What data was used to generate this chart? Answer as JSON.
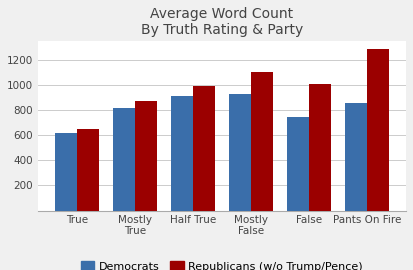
{
  "title": "Average Word Count\nBy Truth Rating & Party",
  "categories": [
    "True",
    "Mostly\nTrue",
    "Half True",
    "Mostly\nFalse",
    "False",
    "Pants On Fire"
  ],
  "democrats": [
    615,
    820,
    910,
    925,
    745,
    860
  ],
  "republicans": [
    650,
    875,
    990,
    1100,
    1010,
    1290
  ],
  "dem_color": "#3a6eaa",
  "rep_color": "#9b0000",
  "ylim": [
    0,
    1350
  ],
  "yticks": [
    200,
    400,
    600,
    800,
    1000,
    1200
  ],
  "bg_color": "#f0f0f0",
  "plot_bg_color": "#ffffff",
  "legend_labels": [
    "Democrats",
    "Republicans (w/o Trump/Pence)"
  ],
  "title_fontsize": 10,
  "tick_fontsize": 7.5,
  "legend_fontsize": 8,
  "bar_width": 0.38
}
